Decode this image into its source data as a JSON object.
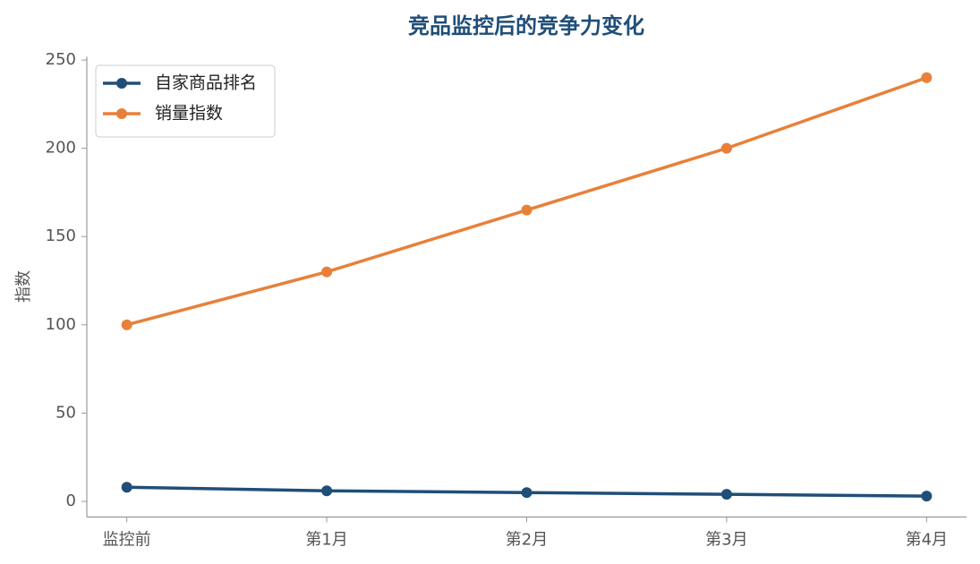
{
  "chart_data": {
    "type": "line",
    "title": "竞品监控后的竞争力变化",
    "y_label": "指数",
    "categories": [
      "监控前",
      "第1月",
      "第2月",
      "第3月",
      "第4月"
    ],
    "series": [
      {
        "name": "自家商品排名",
        "color": "#1f4e79",
        "values": [
          8,
          6,
          5,
          4,
          3
        ]
      },
      {
        "name": "销量指数",
        "color": "#e8803a",
        "values": [
          100,
          130,
          165,
          200,
          240
        ]
      }
    ],
    "ylim": [
      -8.85,
      251.85
    ],
    "yticks": [
      0,
      50,
      100,
      150,
      200,
      250
    ],
    "grid": false,
    "legend": "upper left"
  }
}
